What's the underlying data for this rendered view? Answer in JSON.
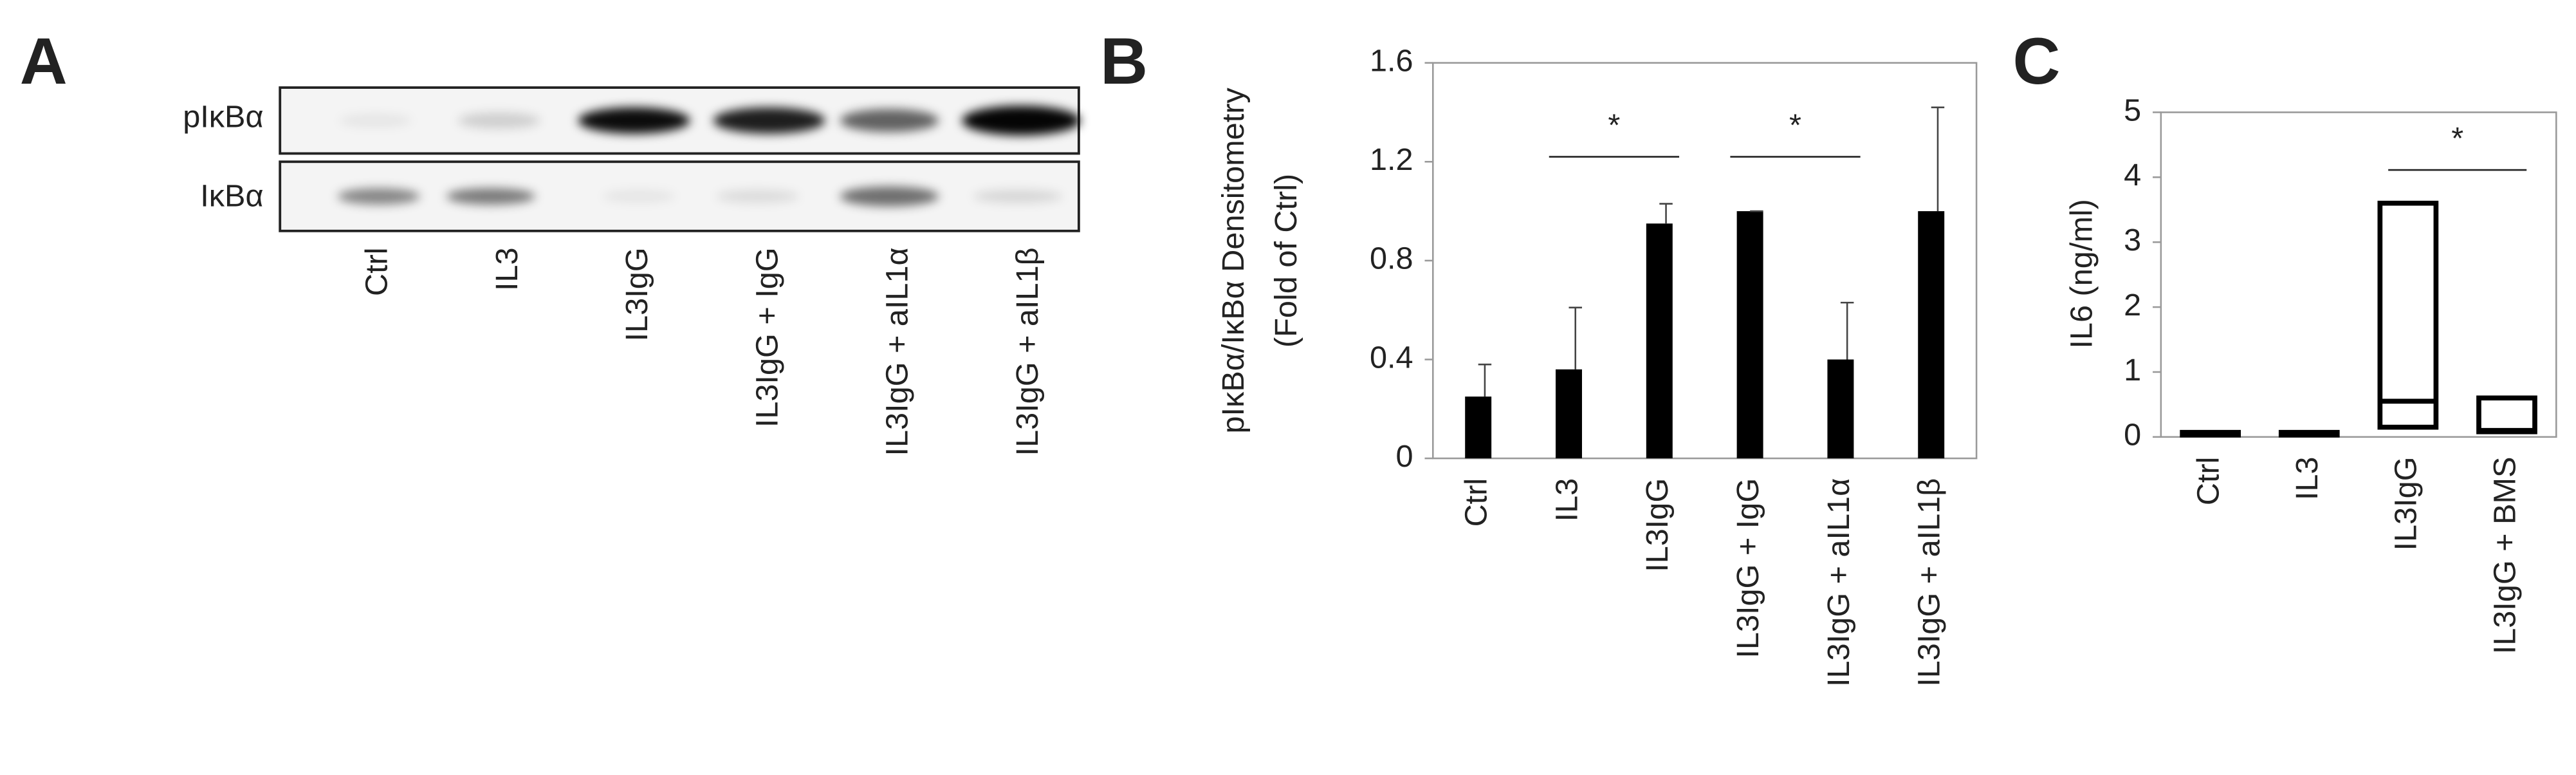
{
  "chart_data": [
    {
      "type": "blot",
      "panel_label": "A",
      "row_labels": [
        "pIκBα",
        "IκBα"
      ],
      "categories": [
        "Ctrl",
        "IL3",
        "IL3IgG",
        "IL3IgG + IgG",
        "IL3IgG + aIL1α",
        "IL3IgG + aIL1β"
      ]
    },
    {
      "type": "bar",
      "panel_label": "B",
      "y_label": [
        "pIκBα/IκBα Densitometry",
        "(Fold of Ctrl)"
      ],
      "categories": [
        "Ctrl",
        "IL3",
        "IL3IgG",
        "IL3IgG + IgG",
        "IL3IgG + aIL1α",
        "IL3IgG + aIL1β"
      ],
      "values": [
        0.25,
        0.36,
        0.95,
        1.0,
        0.4,
        1.0
      ],
      "errors": [
        0.13,
        0.25,
        0.08,
        0,
        0.23,
        0.42
      ],
      "color": "#000000",
      "ylim": [
        0,
        1.6
      ],
      "yticks": [
        0,
        0.4,
        0.8,
        1.2,
        1.6
      ],
      "annotations": [
        "*",
        "*"
      ]
    },
    {
      "type": "box",
      "panel_label": "C",
      "y_label": "IL6 (ng/ml)",
      "categories": [
        "Ctrl",
        "IL3",
        "IL3IgG",
        "IL3IgG + BMS"
      ],
      "low": [
        0.03,
        0.03,
        0.15,
        0.08
      ],
      "median": [
        0.05,
        0.05,
        0.55,
        0.1
      ],
      "high": [
        0.07,
        0.07,
        3.6,
        0.6
      ],
      "color": "#000000",
      "ylim": [
        0,
        5
      ],
      "yticks": [
        0,
        1,
        2,
        3,
        4,
        5
      ],
      "annotations": [
        "*"
      ]
    }
  ]
}
